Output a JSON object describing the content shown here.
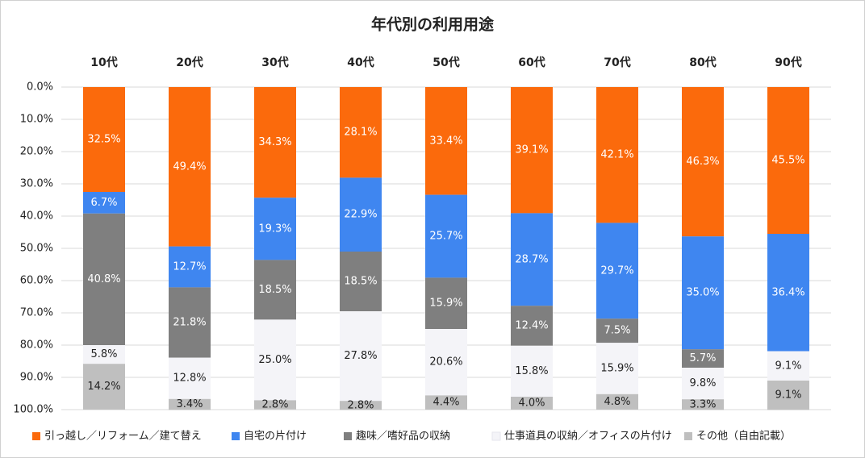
{
  "chart_data": {
    "type": "stacked_bar",
    "title": "年代別の利用用途",
    "categories": [
      "10代",
      "20代",
      "30代",
      "40代",
      "50代",
      "60代",
      "70代",
      "80代",
      "90代"
    ],
    "ylim": [
      0,
      100
    ],
    "y_inverted": true,
    "grid": true,
    "legend": "bottom",
    "yticks": [
      {
        "value": 0,
        "label": "0.0%"
      },
      {
        "value": 10,
        "label": "10.0%"
      },
      {
        "value": 20,
        "label": "20.0%"
      },
      {
        "value": 30,
        "label": "30.0%"
      },
      {
        "value": 40,
        "label": "40.0%"
      },
      {
        "value": 50,
        "label": "50.0%"
      },
      {
        "value": 60,
        "label": "60.0%"
      },
      {
        "value": 70,
        "label": "70.0%"
      },
      {
        "value": 80,
        "label": "80.0%"
      },
      {
        "value": 90,
        "label": "90.0%"
      },
      {
        "value": 100,
        "label": "100.0%"
      }
    ],
    "series": [
      {
        "name": "引っ越し／リフォーム／建て替え",
        "color": "#fb6a0c",
        "values": [
          32.5,
          49.4,
          34.3,
          28.1,
          33.4,
          39.1,
          42.1,
          46.3,
          45.5
        ],
        "value_labels": [
          "32.5%",
          "49.4%",
          "34.3%",
          "28.1%",
          "33.4%",
          "39.1%",
          "42.1%",
          "46.3%",
          "45.5%"
        ]
      },
      {
        "name": "自宅の片付け",
        "color": "#3f86f0",
        "values": [
          6.7,
          12.7,
          19.3,
          22.9,
          25.7,
          28.7,
          29.7,
          35.0,
          36.4
        ],
        "value_labels": [
          "6.7%",
          "12.7%",
          "19.3%",
          "22.9%",
          "25.7%",
          "28.7%",
          "29.7%",
          "35.0%",
          "36.4%"
        ]
      },
      {
        "name": "趣味／嗜好品の収納",
        "color": "#7f7f7f",
        "values": [
          40.8,
          21.8,
          18.5,
          18.5,
          15.9,
          12.4,
          7.5,
          5.7,
          null
        ],
        "value_labels": [
          "40.8%",
          "21.8%",
          "18.5%",
          "18.5%",
          "15.9%",
          "12.4%",
          "7.5%",
          "5.7%",
          null
        ]
      },
      {
        "name": "仕事道具の収納／オフィスの片付け",
        "color": "#f4f4f8",
        "values": [
          5.8,
          12.8,
          25.0,
          27.8,
          20.6,
          15.8,
          15.9,
          9.8,
          9.1
        ],
        "value_labels": [
          "5.8%",
          "12.8%",
          "25.0%",
          "27.8%",
          "20.6%",
          "15.8%",
          "15.9%",
          "9.8%",
          "9.1%"
        ]
      },
      {
        "name": "その他（自由記載）",
        "color": "#bfbfbf",
        "values": [
          14.2,
          3.4,
          2.8,
          2.8,
          4.4,
          4.0,
          4.8,
          3.3,
          9.1
        ],
        "value_labels": [
          "14.2%",
          "3.4%",
          "2.8%",
          "2.8%",
          "4.4%",
          "4.0%",
          "4.8%",
          "3.3%",
          "9.1%"
        ]
      }
    ]
  }
}
